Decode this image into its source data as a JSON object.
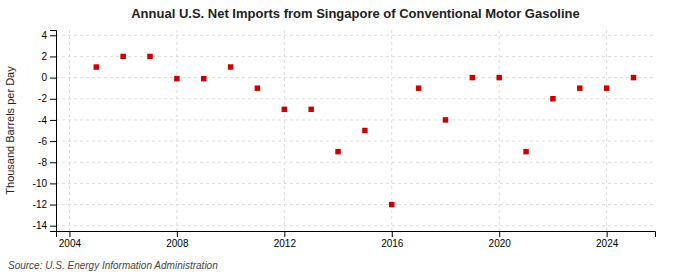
{
  "chart_data": {
    "type": "scatter",
    "title": "Annual U.S. Net Imports from Singapore of Conventional Motor Gasoline",
    "ylabel": "Thousand Barrels per Day",
    "annotation": "Source: U.S. Energy Information Administration",
    "x": [
      2005,
      2006,
      2007,
      2008,
      2009,
      2010,
      2011,
      2012,
      2013,
      2014,
      2015,
      2016,
      2017,
      2018,
      2019,
      2020,
      2021,
      2022,
      2023,
      2024,
      2025
    ],
    "values": [
      1.0,
      2.0,
      2.0,
      -0.1,
      -0.1,
      1.0,
      -1.0,
      -3.0,
      -3.0,
      -7.0,
      -5.0,
      -12.0,
      -1.0,
      -4.0,
      0.0,
      0.0,
      -7.0,
      -2.0,
      -1.0,
      -1.0,
      0.0
    ],
    "color": "#cc0000",
    "marker": "square",
    "xlim": [
      2003.5,
      2025.8
    ],
    "ylim": [
      -14.5,
      4.5
    ],
    "xticks": [
      2004,
      2008,
      2012,
      2016,
      2020,
      2024
    ],
    "yticks": [
      4,
      2,
      0,
      -2,
      -4,
      -6,
      -8,
      -10,
      -12,
      -14
    ],
    "grid": true
  }
}
